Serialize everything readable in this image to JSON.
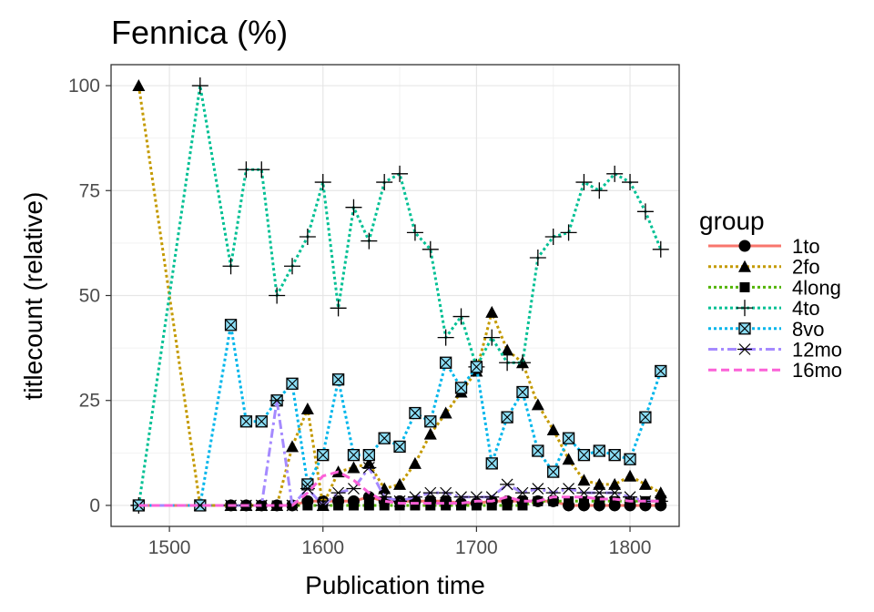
{
  "chart_data": {
    "type": "line",
    "title": "Fennica (%)",
    "xlabel": "Publication time",
    "ylabel": "titlecount (relative)",
    "xlim": [
      1462,
      1832
    ],
    "ylim": [
      -5,
      105
    ],
    "x_ticks": [
      1500,
      1600,
      1700,
      1800
    ],
    "y_ticks": [
      0,
      25,
      50,
      75,
      100
    ],
    "grid": true,
    "legend": {
      "title": "group",
      "position": "right"
    },
    "series": [
      {
        "name": "1to",
        "color": "#F8766D",
        "dash": "solid",
        "marker": "circle",
        "x": [
          1480,
          1520,
          1540,
          1550,
          1560,
          1570,
          1580,
          1590,
          1600,
          1610,
          1620,
          1630,
          1640,
          1650,
          1660,
          1670,
          1680,
          1690,
          1700,
          1710,
          1720,
          1730,
          1740,
          1750,
          1760,
          1770,
          1780,
          1790,
          1800,
          1810,
          1820
        ],
        "y": [
          0,
          0,
          0,
          0,
          0,
          0,
          0,
          1,
          1,
          1,
          1,
          2,
          1,
          1,
          1,
          1,
          1,
          0.5,
          0.5,
          1,
          1,
          1,
          1,
          1,
          0,
          0,
          0,
          0,
          0,
          0,
          0
        ]
      },
      {
        "name": "2fo",
        "color": "#C49A00",
        "dash": "dotted",
        "marker": "triangle",
        "x": [
          1480,
          1520,
          1540,
          1550,
          1560,
          1570,
          1580,
          1590,
          1600,
          1610,
          1620,
          1630,
          1640,
          1650,
          1660,
          1670,
          1680,
          1690,
          1700,
          1710,
          1720,
          1730,
          1740,
          1750,
          1760,
          1770,
          1780,
          1790,
          1800,
          1810,
          1820
        ],
        "y": [
          100,
          0,
          0,
          0,
          0,
          0,
          14,
          23,
          0,
          8,
          9,
          10,
          4,
          5,
          10,
          17,
          22,
          27,
          32,
          46,
          37,
          34,
          24,
          18,
          11,
          6,
          5,
          5,
          7,
          5,
          3
        ]
      },
      {
        "name": "4long",
        "color": "#53B400",
        "dash": "dotted",
        "marker": "square",
        "x": [
          1480,
          1520,
          1540,
          1550,
          1560,
          1570,
          1580,
          1590,
          1600,
          1610,
          1620,
          1630,
          1640,
          1650,
          1660,
          1670,
          1680,
          1690,
          1700,
          1710,
          1720,
          1730,
          1740,
          1750,
          1760,
          1770,
          1780,
          1790,
          1800,
          1810,
          1820
        ],
        "y": [
          0,
          0,
          0,
          0,
          0,
          0,
          0,
          0,
          0,
          0,
          0,
          0,
          0,
          0,
          0,
          0,
          0,
          0,
          0,
          0,
          0,
          0,
          1,
          1,
          1,
          1,
          1,
          1,
          1,
          1,
          1
        ]
      },
      {
        "name": "4to",
        "color": "#00C094",
        "dash": "dotted",
        "marker": "plus",
        "x": [
          1480,
          1520,
          1540,
          1550,
          1560,
          1570,
          1580,
          1590,
          1600,
          1610,
          1620,
          1630,
          1640,
          1650,
          1660,
          1670,
          1680,
          1690,
          1700,
          1710,
          1720,
          1730,
          1740,
          1750,
          1760,
          1770,
          1780,
          1790,
          1800,
          1810,
          1820
        ],
        "y": [
          0,
          100,
          57,
          80,
          80,
          50,
          57,
          64,
          77,
          47,
          71,
          63,
          77,
          79,
          65,
          61,
          40,
          45,
          33,
          40,
          34,
          34,
          59,
          64,
          65,
          77,
          75,
          79,
          77,
          70,
          61
        ]
      },
      {
        "name": "8vo",
        "color": "#00B6EB",
        "dash": "dotted",
        "marker": "boxx",
        "x": [
          1480,
          1520,
          1540,
          1550,
          1560,
          1570,
          1580,
          1590,
          1600,
          1610,
          1620,
          1630,
          1640,
          1650,
          1660,
          1670,
          1680,
          1690,
          1700,
          1710,
          1720,
          1730,
          1740,
          1750,
          1760,
          1770,
          1780,
          1790,
          1800,
          1810,
          1820
        ],
        "y": [
          0,
          0,
          43,
          20,
          20,
          25,
          29,
          5,
          12,
          30,
          12,
          12,
          16,
          14,
          22,
          20,
          34,
          28,
          33,
          10,
          21,
          27,
          13,
          8,
          16,
          12,
          13,
          12,
          11,
          21,
          32
        ]
      },
      {
        "name": "12mo",
        "color": "#A58AFF",
        "dash": "dashdot",
        "marker": "star",
        "x": [
          1480,
          1520,
          1540,
          1550,
          1560,
          1570,
          1580,
          1590,
          1600,
          1610,
          1620,
          1630,
          1640,
          1650,
          1660,
          1670,
          1680,
          1690,
          1700,
          1710,
          1720,
          1730,
          1740,
          1750,
          1760,
          1770,
          1780,
          1790,
          1800,
          1810,
          1820
        ],
        "y": [
          0,
          0,
          0,
          0,
          0,
          25,
          0,
          4,
          0,
          3,
          4,
          9,
          2,
          1,
          2,
          3,
          3,
          2,
          2,
          2,
          5,
          3,
          4,
          3,
          4,
          3,
          3,
          3,
          2,
          1,
          1
        ]
      },
      {
        "name": "16mo",
        "color": "#FB61D7",
        "dash": "dashed",
        "marker": "none",
        "x": [
          1480,
          1520,
          1540,
          1550,
          1560,
          1570,
          1580,
          1590,
          1600,
          1610,
          1620,
          1630,
          1640,
          1650,
          1660,
          1670,
          1680,
          1690,
          1700,
          1710,
          1720,
          1730,
          1740,
          1750,
          1760,
          1770,
          1780,
          1790,
          1800,
          1810,
          1820
        ],
        "y": [
          0,
          0,
          0,
          0,
          0,
          0,
          0,
          3,
          7,
          8,
          6,
          3,
          1,
          0.5,
          0.5,
          0.5,
          0.5,
          0.5,
          1,
          1,
          2,
          1,
          1,
          2,
          2,
          2,
          1.5,
          1.5,
          1,
          1,
          1
        ]
      }
    ]
  }
}
